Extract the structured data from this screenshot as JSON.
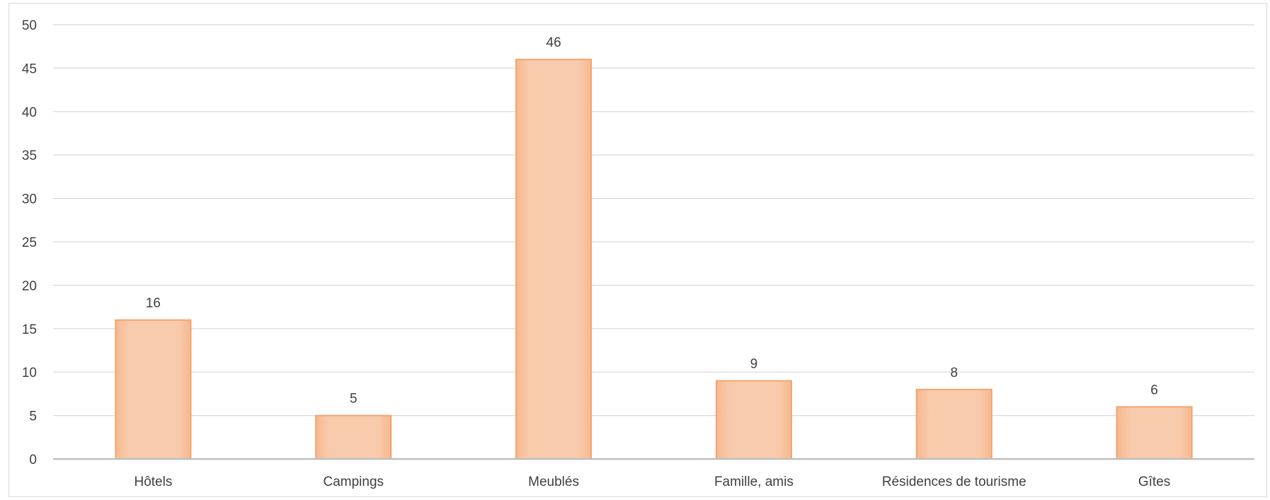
{
  "chart_data": {
    "type": "bar",
    "categories": [
      "Hôtels",
      "Campings",
      "Meublés",
      "Famille, amis",
      "Résidences de tourisme",
      "Gîtes"
    ],
    "values": [
      16,
      5,
      46,
      9,
      8,
      6
    ],
    "title": "",
    "xlabel": "",
    "ylabel": "",
    "ylim": [
      0,
      50
    ],
    "yticks": [
      0,
      5,
      10,
      15,
      20,
      25,
      30,
      35,
      40,
      45,
      50
    ],
    "data_labels": true,
    "grid": true,
    "legend": "none",
    "colors": {
      "bar_fill": "#f8cbad",
      "bar_edge": "#f4a46e",
      "grid": "#d9d9d9",
      "axis": "#bfbfbf",
      "text": "#404040"
    }
  }
}
